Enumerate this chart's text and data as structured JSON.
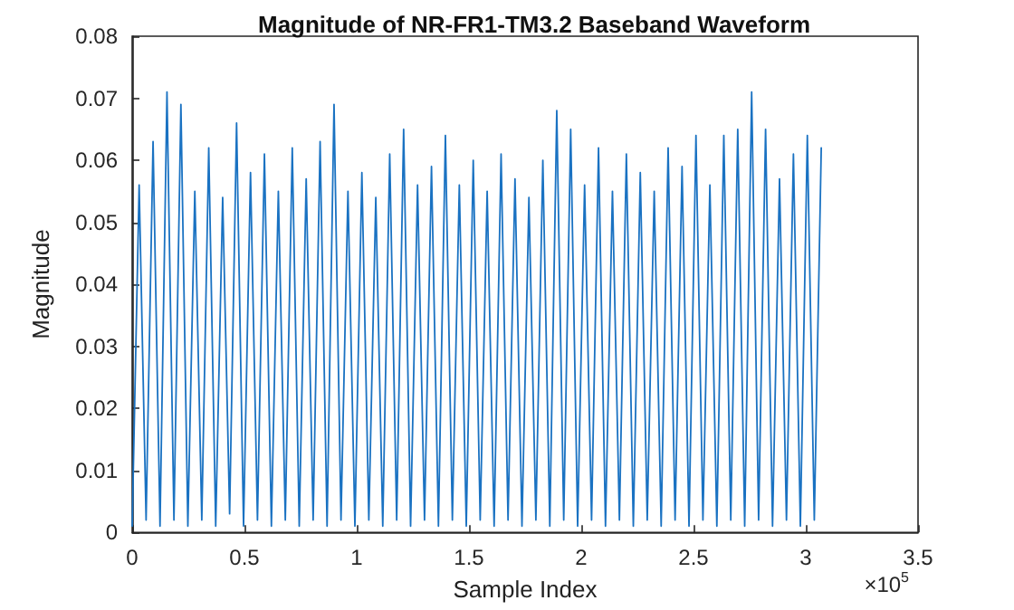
{
  "chart_data": {
    "type": "line",
    "title": "Magnitude of NR-FR1-TM3.2 Baseband Waveform",
    "xlabel": "Sample Index",
    "ylabel": "Magnitude",
    "annotations": [
      "×10$^{5}$"
    ],
    "x": [
      0,
      0.031,
      0.062,
      0.093,
      0.124,
      0.155,
      0.186,
      0.217,
      0.248,
      0.279,
      0.31,
      0.341,
      0.372,
      0.403,
      0.434,
      0.465,
      0.496,
      0.527,
      0.558,
      0.589,
      0.62,
      0.651,
      0.682,
      0.713,
      0.744,
      0.775,
      0.806,
      0.837,
      0.868,
      0.899,
      0.93,
      0.961,
      0.992,
      1.023,
      1.054,
      1.085,
      1.116,
      1.147,
      1.178,
      1.209,
      1.24,
      1.271,
      1.302,
      1.333,
      1.364,
      1.395,
      1.426,
      1.457,
      1.488,
      1.519,
      1.55,
      1.581,
      1.612,
      1.643,
      1.674,
      1.705,
      1.736,
      1.767,
      1.798,
      1.829,
      1.86,
      1.891,
      1.922,
      1.953,
      1.984,
      2.015,
      2.046,
      2.077,
      2.108,
      2.139,
      2.17,
      2.201,
      2.232,
      2.263,
      2.294,
      2.325,
      2.356,
      2.387,
      2.418,
      2.449,
      2.48,
      2.511,
      2.542,
      2.573,
      2.604,
      2.635,
      2.666,
      2.697,
      2.728,
      2.759,
      2.79,
      2.821,
      2.852,
      2.883,
      2.914,
      2.945,
      2.976,
      3.007,
      3.038,
      3.069
    ],
    "series": [
      {
        "color": "#1a72c2",
        "values": [
          0.001,
          0.056,
          0.002,
          0.063,
          0.001,
          0.071,
          0.002,
          0.069,
          0.001,
          0.055,
          0.002,
          0.062,
          0.001,
          0.054,
          0.003,
          0.066,
          0.001,
          0.058,
          0.002,
          0.061,
          0.001,
          0.055,
          0.002,
          0.062,
          0.001,
          0.057,
          0.002,
          0.063,
          0.001,
          0.069,
          0.002,
          0.055,
          0.001,
          0.058,
          0.002,
          0.054,
          0.001,
          0.061,
          0.002,
          0.065,
          0.001,
          0.056,
          0.002,
          0.059,
          0.001,
          0.064,
          0.002,
          0.056,
          0.001,
          0.06,
          0.002,
          0.055,
          0.001,
          0.061,
          0.002,
          0.057,
          0.001,
          0.054,
          0.002,
          0.06,
          0.001,
          0.068,
          0.002,
          0.065,
          0.001,
          0.056,
          0.002,
          0.062,
          0.001,
          0.055,
          0.002,
          0.061,
          0.001,
          0.058,
          0.002,
          0.055,
          0.001,
          0.062,
          0.002,
          0.059,
          0.001,
          0.064,
          0.002,
          0.056,
          0.001,
          0.064,
          0.002,
          0.065,
          0.001,
          0.071,
          0.002,
          0.065,
          0.001,
          0.057,
          0.002,
          0.061,
          0.001,
          0.064,
          0.002,
          0.062
        ]
      }
    ],
    "xlim": [
      0,
      3.5
    ],
    "xticks": [
      0,
      0.5,
      1,
      1.5,
      2,
      2.5,
      3,
      3.5
    ],
    "ylim": [
      0,
      0.08
    ],
    "yticks": [
      0,
      0.01,
      0.02,
      0.03,
      0.04,
      0.05,
      0.06,
      0.07,
      0.08
    ],
    "line_style": "solid"
  }
}
